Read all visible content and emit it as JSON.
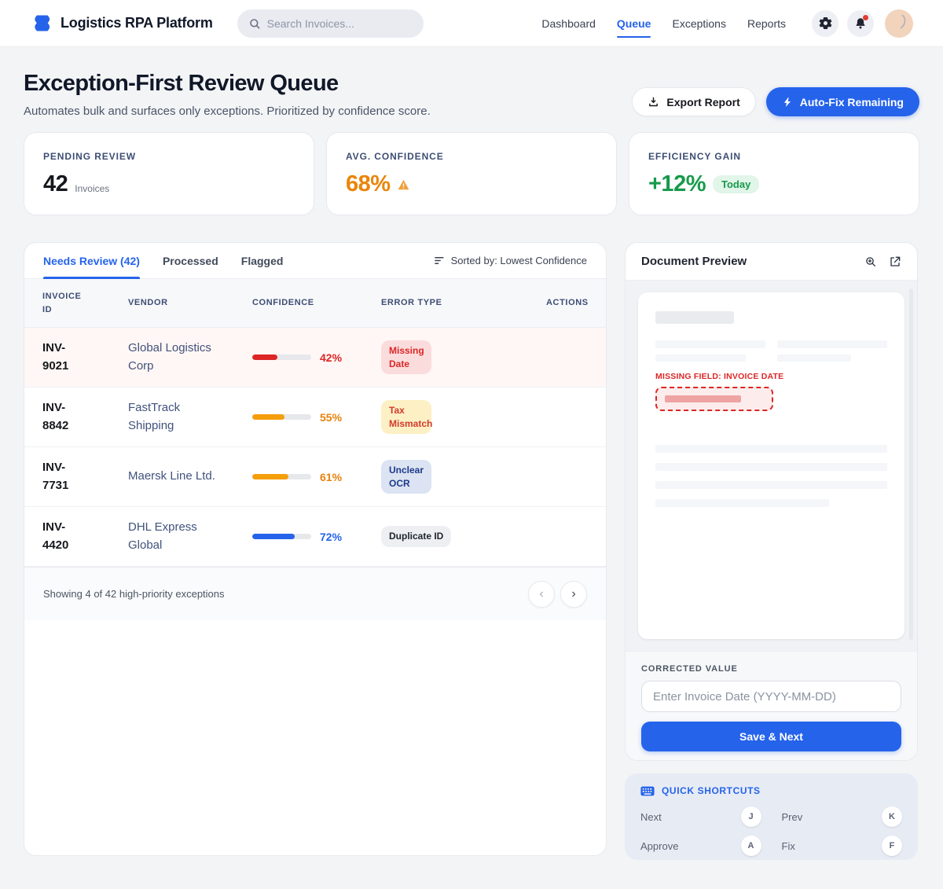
{
  "colors": {
    "accent_blue": "#2563eb",
    "critical_red": "#dc2626",
    "warning_orange": "#f59e0b",
    "success_green": "#169a4a",
    "page_bg": "#f3f4f6",
    "shortcuts_bg": "#e7ebf4"
  },
  "header": {
    "brand": "Logistics RPA Platform",
    "search_placeholder": "Search Invoices...",
    "nav": [
      {
        "label": "Dashboard",
        "active": false
      },
      {
        "label": "Queue",
        "active": true
      },
      {
        "label": "Exceptions",
        "active": false
      },
      {
        "label": "Reports",
        "active": false
      }
    ]
  },
  "page": {
    "title": "Exception-First Review Queue",
    "subtitle": "Automates bulk and surfaces only exceptions. Prioritized by confidence score.",
    "export_button": "Export Report",
    "autofix_button": "Auto-Fix Remaining"
  },
  "stats": [
    {
      "label": "PENDING REVIEW",
      "value": "42",
      "suffix": "Invoices"
    },
    {
      "label": "AVG. CONFIDENCE",
      "value": "68%"
    },
    {
      "label": "EFFICIENCY GAIN",
      "value": "+12%",
      "badge": "Today"
    }
  ],
  "queue": {
    "tabs": [
      {
        "label": "Needs Review (42)",
        "active": true
      },
      {
        "label": "Processed",
        "active": false
      },
      {
        "label": "Flagged",
        "active": false
      }
    ],
    "sorted_by": "Sorted by: Lowest Confidence",
    "columns": [
      "INVOICE ID",
      "VENDOR",
      "CONFIDENCE",
      "ERROR TYPE",
      "ACTIONS"
    ],
    "rows": [
      {
        "invoice_id": "INV-9021",
        "vendor": "Global Logistics Corp",
        "confidence": 42,
        "confidence_label": "42%",
        "error_type": "Missing Date",
        "severity": "critical",
        "highlighted": true,
        "bar_color": "#dc2626",
        "pct_color": "#dc2626",
        "badge_bg": "#fbdcdc",
        "badge_fg": "#dc2626"
      },
      {
        "invoice_id": "INV-8842",
        "vendor": "FastTrack Shipping",
        "confidence": 55,
        "confidence_label": "55%",
        "error_type": "Tax Mismatch",
        "severity": "warning",
        "highlighted": false,
        "bar_color": "#f59e0b",
        "pct_color": "#e8820c",
        "badge_bg": "#fdf0c4",
        "badge_fg": "#d23b2e"
      },
      {
        "invoice_id": "INV-7731",
        "vendor": "Maersk Line Ltd.",
        "confidence": 61,
        "confidence_label": "61%",
        "error_type": "Unclear OCR",
        "severity": "info",
        "highlighted": false,
        "bar_color": "#f59e0b",
        "pct_color": "#e8820c",
        "badge_bg": "#dce3f2",
        "badge_fg": "#1e3a8a"
      },
      {
        "invoice_id": "INV-4420",
        "vendor": "DHL Express Global",
        "confidence": 72,
        "confidence_label": "72%",
        "error_type": "Duplicate ID",
        "severity": "neutral",
        "highlighted": false,
        "bar_color": "#2563eb",
        "pct_color": "#2563eb",
        "badge_bg": "#edeff2",
        "badge_fg": "#1f2430"
      }
    ],
    "footer_text": "Showing 4 of 42 high-priority exceptions",
    "pagination": {
      "prev": "‹",
      "next": "›"
    }
  },
  "preview": {
    "title": "Document Preview",
    "missing_field_label": "MISSING FIELD: INVOICE DATE",
    "corrected_label": "CORRECTED VALUE",
    "input_placeholder": "Enter Invoice Date (YYYY-MM-DD)",
    "save_button": "Save & Next"
  },
  "shortcuts": {
    "title": "QUICK SHORTCUTS",
    "items": [
      {
        "action": "Next",
        "key": "J"
      },
      {
        "action": "Prev",
        "key": "K"
      },
      {
        "action": "Approve",
        "key": "A"
      },
      {
        "action": "Fix",
        "key": "F"
      }
    ]
  }
}
